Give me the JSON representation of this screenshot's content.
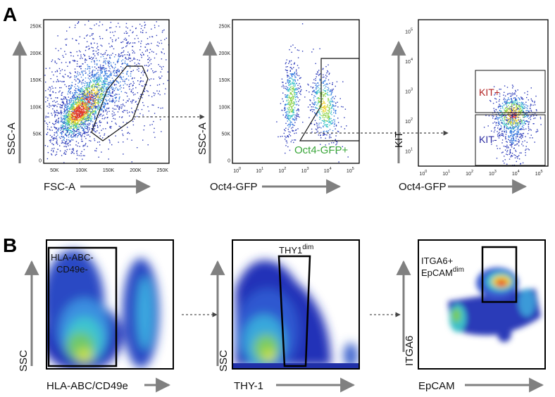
{
  "figure": {
    "panel_a_label": "A",
    "panel_b_label": "B"
  },
  "colors": {
    "kit_pos": "#b22222",
    "kit_neg": "#2a2aa0",
    "gfp_gate": "#3aa63a",
    "axis": "#808080",
    "frame": "#000000"
  },
  "chart_data": [
    {
      "id": "a1",
      "type": "scatter",
      "xlabel": "FSC-A",
      "ylabel": "SSC-A",
      "x_ticks": [
        "50K",
        "100K",
        "150K",
        "200K",
        "250K"
      ],
      "y_ticks": [
        "0",
        "50K",
        "100K",
        "150K",
        "200K",
        "250K"
      ],
      "xlim": [
        30000,
        262000
      ],
      "ylim": [
        -5000,
        262000
      ]
    },
    {
      "id": "a2",
      "type": "scatter",
      "xlabel": "Oct4-GFP",
      "ylabel": "SSC-A",
      "x_ticks": [
        {
          "b": "10",
          "e": "0"
        },
        {
          "b": "10",
          "e": "1"
        },
        {
          "b": "10",
          "e": "2"
        },
        {
          "b": "10",
          "e": "3"
        },
        {
          "b": "10",
          "e": "4"
        },
        {
          "b": "10",
          "e": "5"
        }
      ],
      "y_ticks": [
        "0",
        "50K",
        "100K",
        "150K",
        "200K",
        "250K"
      ],
      "xlim": [
        -0.3,
        5.3
      ],
      "ylim": [
        -5000,
        262000
      ],
      "gate_label": "Oct4-GFP+"
    },
    {
      "id": "a3",
      "type": "scatter",
      "xlabel": "Oct4-GFP",
      "ylabel": "KIT",
      "x_ticks": [
        {
          "b": "10",
          "e": "0"
        },
        {
          "b": "10",
          "e": "1"
        },
        {
          "b": "10",
          "e": "2"
        },
        {
          "b": "10",
          "e": "3"
        },
        {
          "b": "10",
          "e": "4"
        },
        {
          "b": "10",
          "e": "5"
        }
      ],
      "y_ticks": [
        {
          "b": "10",
          "e": "1"
        },
        {
          "b": "10",
          "e": "2"
        },
        {
          "b": "10",
          "e": "3"
        },
        {
          "b": "10",
          "e": "4"
        },
        {
          "b": "10",
          "e": "5"
        }
      ],
      "xlim": [
        -0.3,
        5.3
      ],
      "ylim": [
        0.5,
        5.4
      ],
      "gate_pos_label": "KIT+",
      "gate_neg_label": "KIT-"
    },
    {
      "id": "b1",
      "type": "scatter",
      "xlabel": "HLA-ABC/CD49e",
      "ylabel": "SSC",
      "gate_label_1": "HLA-ABC-",
      "gate_label_2": "CD49e-"
    },
    {
      "id": "b2",
      "type": "scatter",
      "xlabel": "THY-1",
      "ylabel": "SSC",
      "gate_label": "THY1",
      "gate_label_sup": "dim"
    },
    {
      "id": "b3",
      "type": "scatter",
      "xlabel": "EpCAM",
      "ylabel": "ITGA6",
      "gate_label_1": "ITGA6+",
      "gate_label_2": "EpCAM",
      "gate_label_2_sup": "dim"
    }
  ]
}
